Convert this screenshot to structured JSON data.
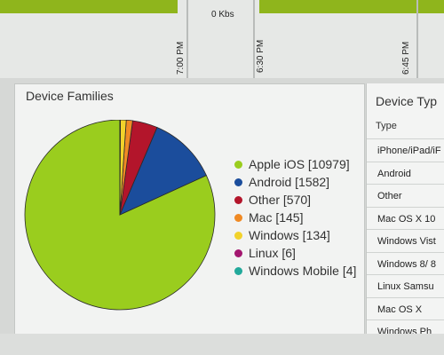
{
  "top_chart": {
    "zero_label": "0 Kbs",
    "time_labels": [
      "7:00 PM",
      "6:30 PM",
      "6:45 PM"
    ]
  },
  "chart_data": {
    "type": "pie",
    "title": "Device Families",
    "series": [
      {
        "name": "Apple iOS",
        "value": 10979,
        "color": "#9acd1e"
      },
      {
        "name": "Android",
        "value": 1582,
        "color": "#1b4d9c"
      },
      {
        "name": "Other",
        "value": 570,
        "color": "#b3152b"
      },
      {
        "name": "Mac",
        "value": 145,
        "color": "#f08a24"
      },
      {
        "name": "Windows",
        "value": 134,
        "color": "#f2d22b"
      },
      {
        "name": "Linux",
        "value": 6,
        "color": "#a3176f"
      },
      {
        "name": "Windows Mobile",
        "value": 4,
        "color": "#22a99b"
      }
    ],
    "legend_labels": [
      "Apple iOS [10979]",
      "Android [1582]",
      "Other [570]",
      "Mac [145]",
      "Windows [134]",
      "Linux [6]",
      "Windows Mobile [4]"
    ],
    "legend_position": "right"
  },
  "side_table": {
    "title": "Device Typ",
    "header": "Type",
    "rows": [
      "iPhone/iPad/iF",
      "Android",
      "Other",
      "Mac OS X 10",
      "Windows Vist",
      "Windows 8/ 8",
      "Linux Samsu",
      "Mac OS X",
      "Windows Ph"
    ]
  }
}
